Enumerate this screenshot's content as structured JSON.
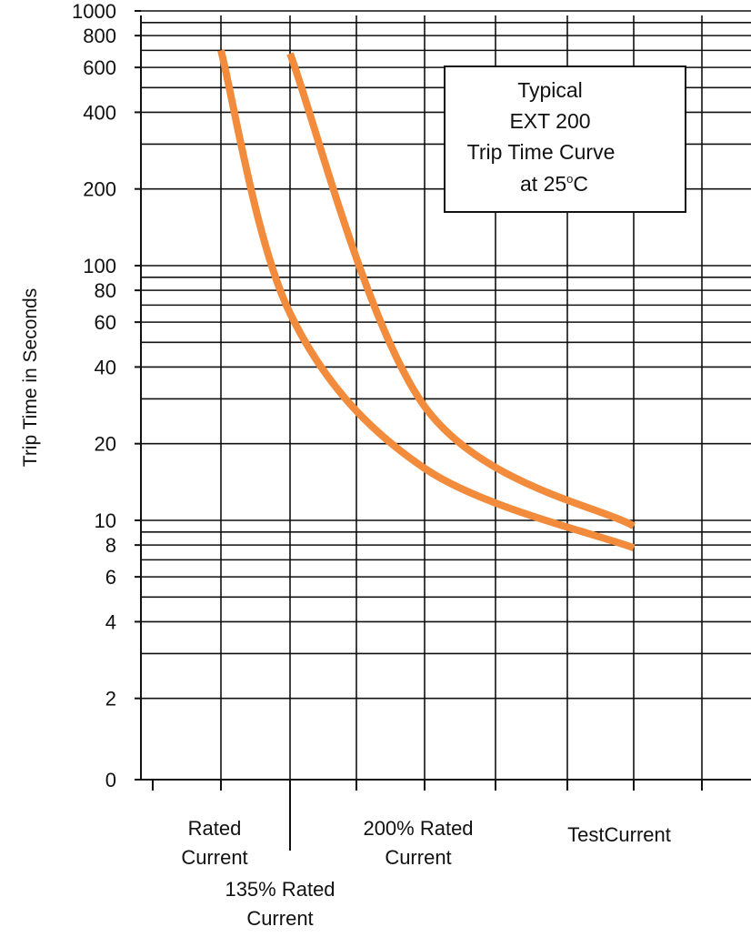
{
  "chart_data": {
    "type": "line",
    "ylabel": "Trip Time in Seconds",
    "xlabel": "",
    "y_scale": "log",
    "y_ticks": [
      0,
      2,
      4,
      6,
      8,
      10,
      20,
      40,
      60,
      80,
      100,
      200,
      400,
      600,
      800,
      1000
    ],
    "y_tick_labels": [
      "0",
      "2",
      "4",
      "6",
      "8",
      "10",
      "20",
      "40",
      "60",
      "80",
      "100",
      "200",
      "400",
      "600",
      "800",
      "1000"
    ],
    "categories": [
      {
        "label": "Rated Current",
        "lines": [
          "Rated",
          "Current"
        ]
      },
      {
        "label": "135% Rated Current",
        "lines": [
          "135% Rated",
          "Current"
        ]
      },
      {
        "label": "200% Rated Current",
        "lines": [
          "200% Rated",
          "Current"
        ]
      },
      {
        "label": "TestCurrent",
        "lines": [
          "TestCurrent"
        ]
      }
    ],
    "grid": true,
    "series": [
      {
        "color": "#f28c3c",
        "points": [
          {
            "x": "Rated Current",
            "y": 700
          },
          {
            "x": "135% Rated Current",
            "y": 65
          },
          {
            "x": "200% Rated Current",
            "y": 16
          },
          {
            "x": "TestCurrent",
            "y": 7.8
          }
        ]
      },
      {
        "color": "#f28c3c",
        "points": [
          {
            "x": "135% Rated Current",
            "y": 680
          },
          {
            "x": "200% Rated Current",
            "y": 28
          },
          {
            "x": "TestCurrent",
            "y": 9.5
          }
        ]
      }
    ],
    "annotation": {
      "lines": [
        "Typical",
        "EXT 200",
        "Trip Time Curve",
        "at 25",
        "o",
        "C"
      ]
    }
  }
}
